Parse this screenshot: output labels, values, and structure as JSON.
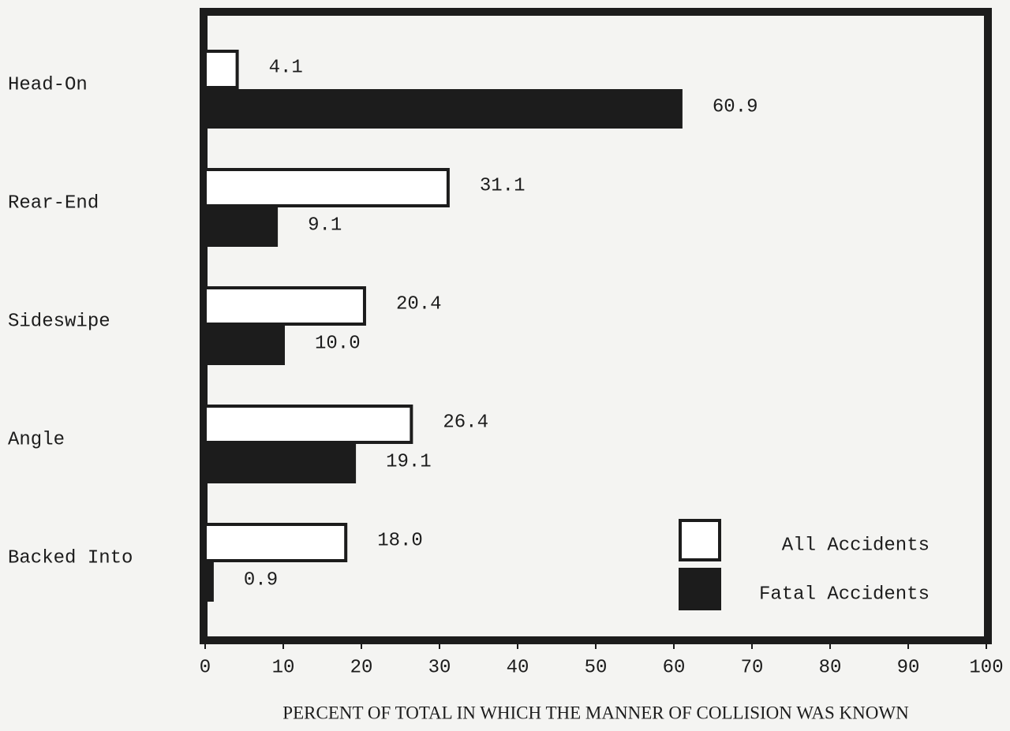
{
  "chart_data": {
    "type": "barh",
    "xlabel": "PERCENT OF TOTAL IN WHICH THE MANNER OF COLLISION WAS KNOWN",
    "categories": [
      "Head-On",
      "Rear-End",
      "Sideswipe",
      "Angle",
      "Backed Into"
    ],
    "series": [
      {
        "name": "All Accidents",
        "color": "#ffffff",
        "values": [
          4.1,
          31.1,
          20.4,
          26.4,
          18.0
        ],
        "value_labels": [
          "4.1",
          "31.1",
          "20.4",
          "26.4",
          "18.0"
        ]
      },
      {
        "name": "Fatal Accidents",
        "color": "#1c1c1c",
        "values": [
          60.9,
          9.1,
          10.0,
          19.1,
          0.9
        ],
        "value_labels": [
          "60.9",
          "9.1",
          "10.0",
          "19.1",
          "0.9"
        ]
      }
    ],
    "xlim": [
      0,
      100
    ],
    "xticks": [
      0,
      10,
      20,
      30,
      40,
      50,
      60,
      70,
      80,
      90,
      100
    ],
    "legend": "lower right"
  }
}
